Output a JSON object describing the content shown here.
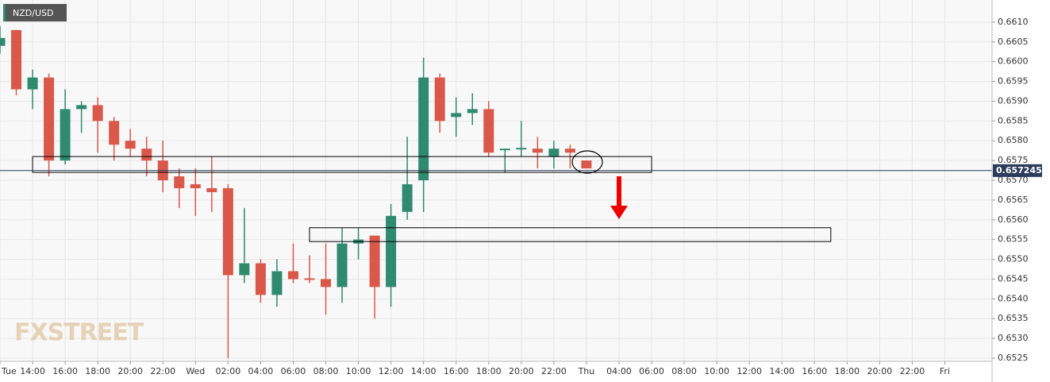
{
  "chart_data": {
    "type": "candlestick",
    "symbol": "NZD/USD",
    "watermark": "FXSTREET",
    "x": [
      12,
      13,
      14,
      15,
      16,
      17,
      18,
      19,
      20,
      21,
      22,
      23,
      24,
      25,
      26,
      27,
      28,
      29,
      30,
      31,
      32,
      33,
      34,
      35,
      36,
      37,
      38,
      39,
      40,
      41,
      42,
      43,
      44,
      45,
      46,
      47,
      48
    ],
    "series": [
      {
        "up_color": "#2f8a6e",
        "down_color": "#d9584a",
        "open": [
          0.6604,
          0.6608,
          0.6593,
          0.6596,
          0.6575,
          0.6588,
          0.6589,
          0.6585,
          0.658,
          0.6578,
          0.6575,
          0.6571,
          0.6569,
          0.6568,
          0.6568,
          0.6546,
          0.6549,
          0.6541,
          0.6547,
          0.65452,
          0.6545,
          0.6543,
          0.6554,
          0.6556,
          0.6543,
          0.6562,
          0.657,
          0.6596,
          0.6586,
          0.6587,
          0.6588,
          0.65776,
          0.65778,
          0.6578,
          0.6576,
          0.6578,
          0.6575
        ],
        "high": [
          0.6609,
          0.6608,
          0.6598,
          0.6597,
          0.6593,
          0.659,
          0.6591,
          0.6586,
          0.6583,
          0.6581,
          0.658,
          0.6573,
          0.6573,
          0.6576,
          0.6569,
          0.6563,
          0.655,
          0.655,
          0.6554,
          0.6551,
          0.6554,
          0.6558,
          0.6558,
          0.6556,
          0.6564,
          0.6581,
          0.6601,
          0.6597,
          0.6591,
          0.6592,
          0.659,
          0.6578,
          0.6585,
          0.6581,
          0.658,
          0.6579,
          0.6575
        ],
        "low": [
          0.6602,
          0.65915,
          0.6588,
          0.6571,
          0.6574,
          0.6582,
          0.6577,
          0.6575,
          0.6576,
          0.6571,
          0.6567,
          0.6563,
          0.6561,
          0.6562,
          0.6525,
          0.6544,
          0.6539,
          0.6538,
          0.6544,
          0.6544,
          0.6536,
          0.6539,
          0.655,
          0.6535,
          0.6538,
          0.656,
          0.6562,
          0.6582,
          0.6581,
          0.6584,
          0.6576,
          0.6572,
          0.6576,
          0.6573,
          0.6573,
          0.6573,
          0.6573
        ],
        "close": [
          0.6606,
          0.6593,
          0.6596,
          0.6575,
          0.6588,
          0.6589,
          0.6585,
          0.6579,
          0.6578,
          0.6575,
          0.657,
          0.6568,
          0.6568,
          0.6567,
          0.6546,
          0.6549,
          0.6541,
          0.6547,
          0.6545,
          0.65448,
          0.6543,
          0.6554,
          0.6555,
          0.6543,
          0.6561,
          0.6569,
          0.6596,
          0.6585,
          0.6587,
          0.6588,
          0.6577,
          0.6578,
          0.65782,
          0.6577,
          0.6578,
          0.6577,
          0.6573
        ]
      }
    ],
    "current_price": 0.657245,
    "current_price_color": "#2a3b5c",
    "zones": [
      {
        "x": [
          14,
          52
        ],
        "y": [
          0.6572,
          0.6576
        ]
      },
      {
        "x": [
          31,
          63
        ],
        "y": [
          0.65545,
          0.6558
        ]
      }
    ],
    "xlim": [
      12,
      72.9
    ],
    "ylim": [
      0.65242,
      0.66156
    ],
    "xticks": [
      {
        "value": 12,
        "label": "Tue"
      },
      {
        "value": 14,
        "label": "14:00"
      },
      {
        "value": 16,
        "label": "16:00"
      },
      {
        "value": 18,
        "label": "18:00"
      },
      {
        "value": 20,
        "label": "20:00"
      },
      {
        "value": 22,
        "label": "22:00"
      },
      {
        "value": 24,
        "label": "Wed"
      },
      {
        "value": 26,
        "label": "02:00"
      },
      {
        "value": 28,
        "label": "04:00"
      },
      {
        "value": 30,
        "label": "06:00"
      },
      {
        "value": 32,
        "label": "08:00"
      },
      {
        "value": 34,
        "label": "10:00"
      },
      {
        "value": 36,
        "label": "12:00"
      },
      {
        "value": 38,
        "label": "14:00"
      },
      {
        "value": 40,
        "label": "16:00"
      },
      {
        "value": 42,
        "label": "18:00"
      },
      {
        "value": 44,
        "label": "20:00"
      },
      {
        "value": 46,
        "label": "22:00"
      },
      {
        "value": 48,
        "label": "Thu"
      },
      {
        "value": 50,
        "label": "04:00"
      },
      {
        "value": 52,
        "label": "06:00"
      },
      {
        "value": 54,
        "label": "08:00"
      },
      {
        "value": 56,
        "label": "10:00"
      },
      {
        "value": 58,
        "label": "12:00"
      },
      {
        "value": 60,
        "label": "14:00"
      },
      {
        "value": 62,
        "label": "16:00"
      },
      {
        "value": 64,
        "label": "18:00"
      },
      {
        "value": 66,
        "label": "20:00"
      },
      {
        "value": 68,
        "label": "22:00"
      },
      {
        "value": 70,
        "label": "Fri"
      }
    ],
    "yticks": [
      0.6525,
      {
        "value": 0.653,
        "label": "0.6530"
      },
      0.6535,
      {
        "value": 0.654,
        "label": "0.6540"
      },
      0.6545,
      {
        "value": 0.655,
        "label": "0.6550"
      },
      0.6555,
      {
        "value": 0.656,
        "label": "0.6560"
      },
      0.6565,
      {
        "value": 0.657,
        "label": "0.6570"
      },
      0.6575,
      {
        "value": 0.658,
        "label": "0.6580"
      },
      0.6585,
      {
        "value": 0.659,
        "label": "0.6590"
      },
      0.6595,
      {
        "value": 0.66,
        "label": "0.6600"
      },
      0.6605,
      {
        "value": 0.661,
        "label": "0.6610"
      }
    ],
    "grid": true
  }
}
